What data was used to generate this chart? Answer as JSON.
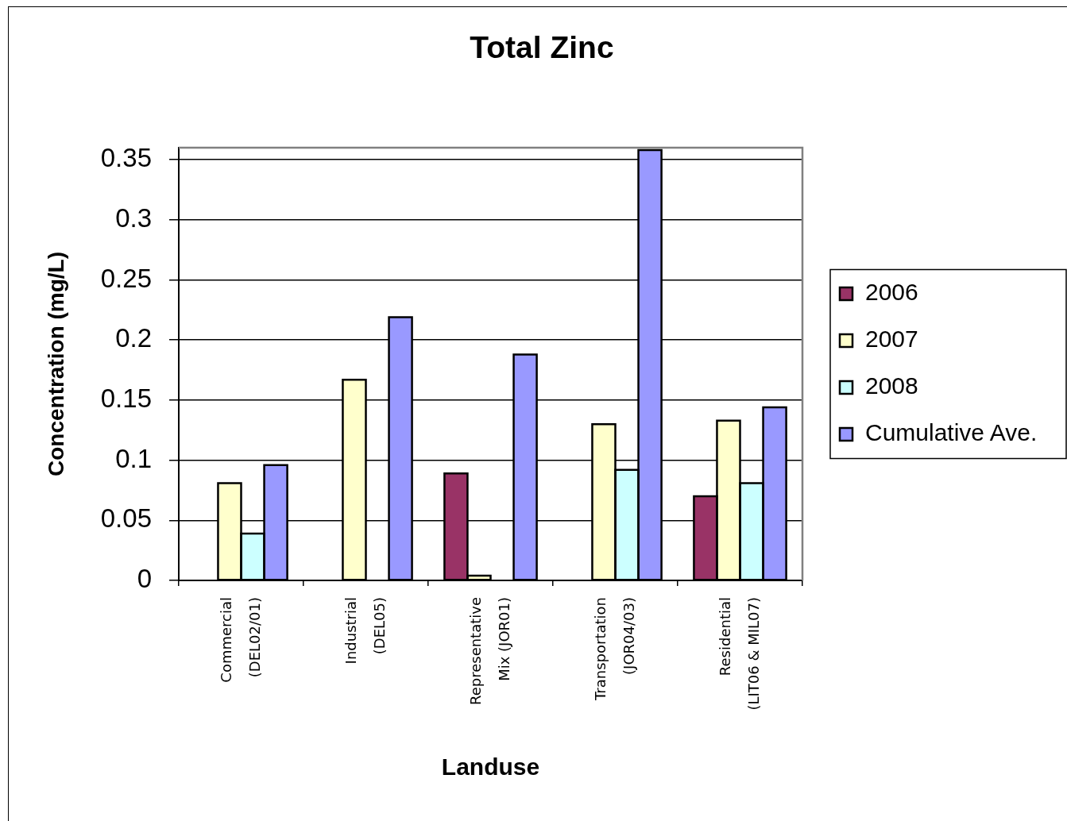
{
  "chart_data": {
    "type": "bar",
    "title": "Total Zinc",
    "xlabel": "Landuse",
    "ylabel": "Concentration (mg/L)",
    "categories": [
      "Commercial (DEL02/01)",
      "Industrial (DEL05)",
      "Representative Mix (JOR01)",
      "Transportation (JOR04/03)",
      "Residential (LIT06 & MIL07)"
    ],
    "series": [
      {
        "name": "2006",
        "color": "#993366",
        "values": [
          null,
          null,
          0.089,
          null,
          0.07
        ]
      },
      {
        "name": "2007",
        "color": "#ffffcc",
        "values": [
          0.081,
          0.167,
          0.004,
          0.13,
          0.133
        ]
      },
      {
        "name": "2008",
        "color": "#ccffff",
        "values": [
          0.039,
          null,
          null,
          0.092,
          0.081
        ]
      },
      {
        "name": "Cumulative Ave.",
        "color": "#9999ff",
        "values": [
          0.096,
          0.219,
          0.188,
          0.358,
          0.144
        ]
      }
    ],
    "ylim": [
      0,
      0.36
    ],
    "yticks": [
      0,
      0.05,
      0.1,
      0.15,
      0.2,
      0.25,
      0.3,
      0.35
    ],
    "grid": "y",
    "legend": "right"
  }
}
